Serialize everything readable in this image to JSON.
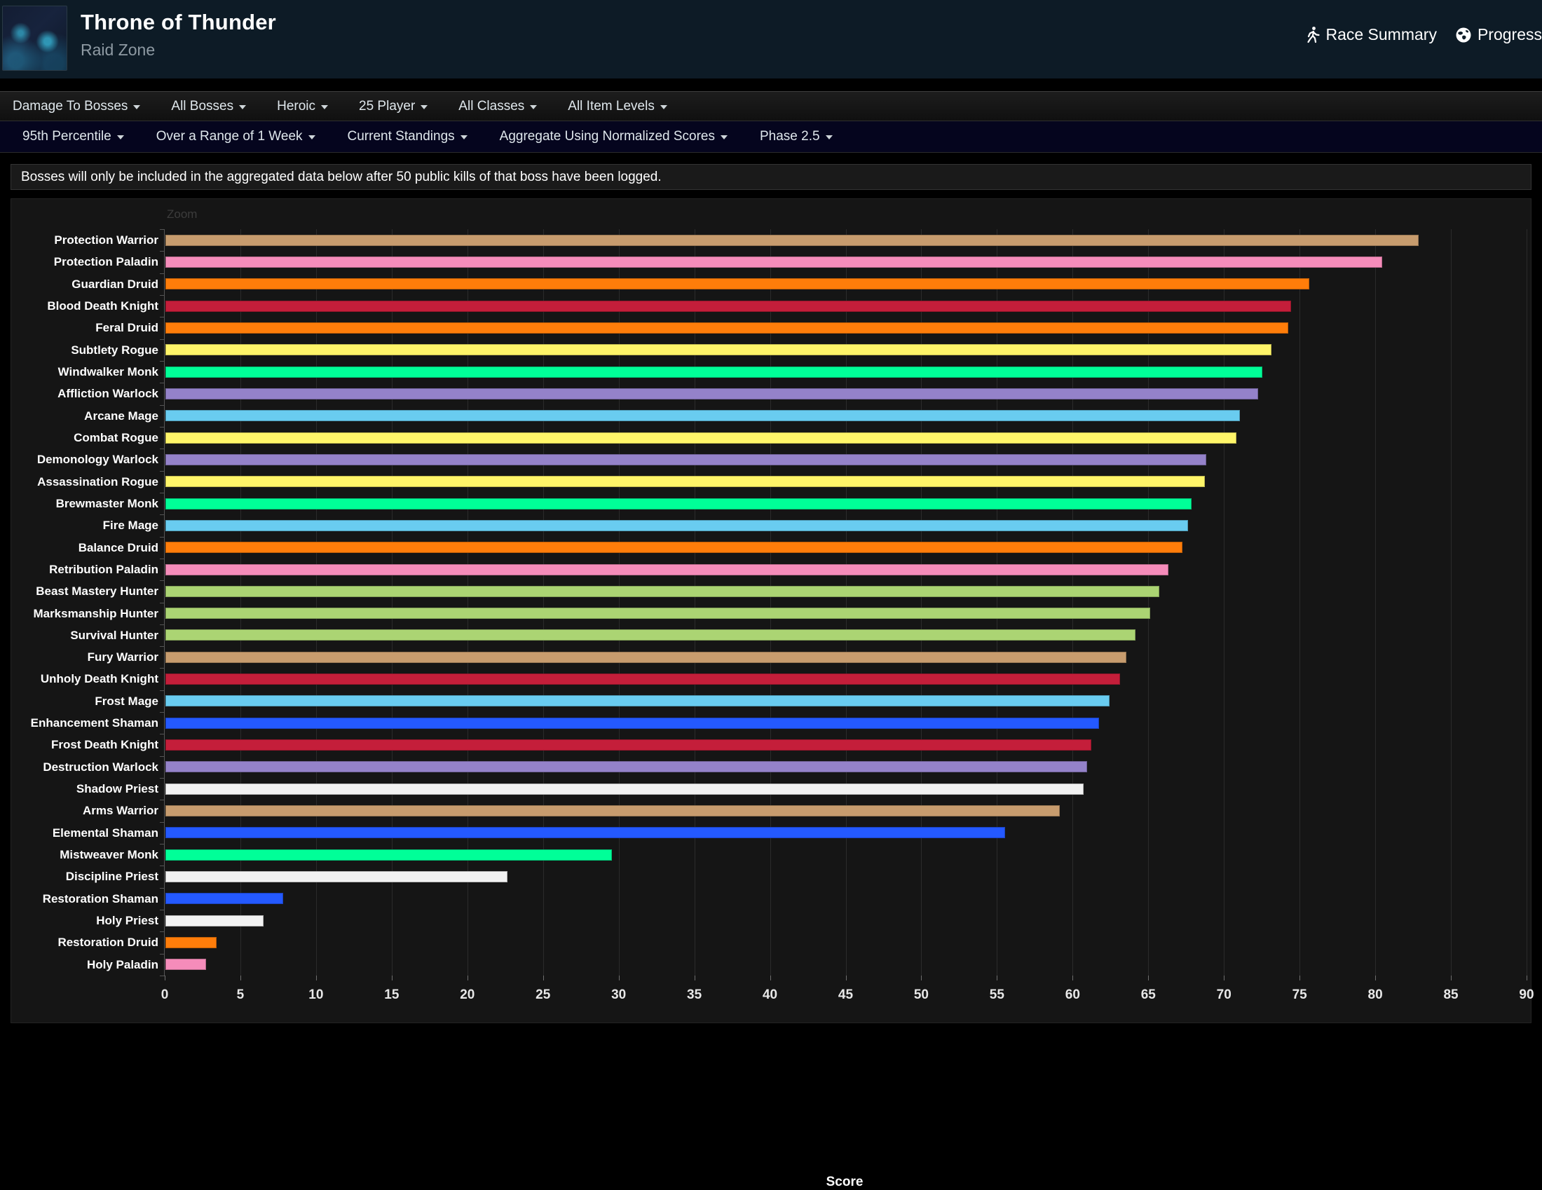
{
  "header": {
    "title": "Throne of Thunder",
    "subtitle": "Raid Zone",
    "links": [
      {
        "label": "Race Summary",
        "icon": "runner-icon"
      },
      {
        "label": "Progress",
        "icon": "globe-icon"
      }
    ]
  },
  "nav_primary": {
    "items": [
      "Damage To Bosses",
      "All Bosses",
      "Heroic",
      "25 Player",
      "All Classes",
      "All Item Levels"
    ]
  },
  "nav_secondary": {
    "items": [
      "95th Percentile",
      "Over a Range of 1 Week",
      "Current Standings",
      "Aggregate Using Normalized Scores",
      "Phase 2.5"
    ]
  },
  "notice": "Bosses will only be included in the aggregated data below after 50 public kills of that boss have been logged.",
  "chart_data": {
    "type": "bar",
    "orientation": "horizontal",
    "zoom_label": "Zoom",
    "xlabel": "Score",
    "xlim": [
      0,
      90
    ],
    "xticks": [
      0,
      5,
      10,
      15,
      20,
      25,
      30,
      35,
      40,
      45,
      50,
      55,
      60,
      65,
      70,
      75,
      80,
      85,
      90
    ],
    "grid": true,
    "categories": [
      "Protection Warrior",
      "Protection Paladin",
      "Guardian Druid",
      "Blood Death Knight",
      "Feral Druid",
      "Subtlety Rogue",
      "Windwalker Monk",
      "Affliction Warlock",
      "Arcane Mage",
      "Combat Rogue",
      "Demonology Warlock",
      "Assassination Rogue",
      "Brewmaster Monk",
      "Fire Mage",
      "Balance Druid",
      "Retribution Paladin",
      "Beast Mastery Hunter",
      "Marksmanship Hunter",
      "Survival Hunter",
      "Fury Warrior",
      "Unholy Death Knight",
      "Frost Mage",
      "Enhancement Shaman",
      "Frost Death Knight",
      "Destruction Warlock",
      "Shadow Priest",
      "Arms Warrior",
      "Elemental Shaman",
      "Mistweaver Monk",
      "Discipline Priest",
      "Restoration Shaman",
      "Holy Priest",
      "Restoration Druid",
      "Holy Paladin"
    ],
    "values": [
      82.8,
      80.4,
      75.6,
      74.4,
      74.2,
      73.1,
      72.5,
      72.2,
      71.0,
      70.8,
      68.8,
      68.7,
      67.8,
      67.6,
      67.2,
      66.3,
      65.7,
      65.1,
      64.1,
      63.5,
      63.1,
      62.4,
      61.7,
      61.2,
      60.9,
      60.7,
      59.1,
      55.5,
      29.5,
      22.6,
      7.8,
      6.5,
      3.4,
      2.7
    ],
    "bar_classes": [
      "warrior",
      "paladin",
      "druid",
      "deathknight",
      "druid",
      "rogue",
      "monk",
      "warlock",
      "mage",
      "rogue",
      "warlock",
      "rogue",
      "monk",
      "mage",
      "druid",
      "paladin",
      "hunter",
      "hunter",
      "hunter",
      "warrior",
      "deathknight",
      "mage",
      "shaman",
      "deathknight",
      "warlock",
      "priest",
      "warrior",
      "shaman",
      "monk",
      "priest",
      "shaman",
      "priest",
      "druid",
      "paladin"
    ],
    "colors": {
      "warrior": "#C79C6E",
      "paladin": "#F58CBA",
      "druid": "#FF7D0A",
      "deathknight": "#C41E3A",
      "rogue": "#FFF569",
      "monk": "#00FF98",
      "warlock": "#9482C9",
      "mage": "#69CCF0",
      "shaman": "#2459FF",
      "hunter": "#ABD473",
      "priest": "#F2F2F2"
    }
  }
}
